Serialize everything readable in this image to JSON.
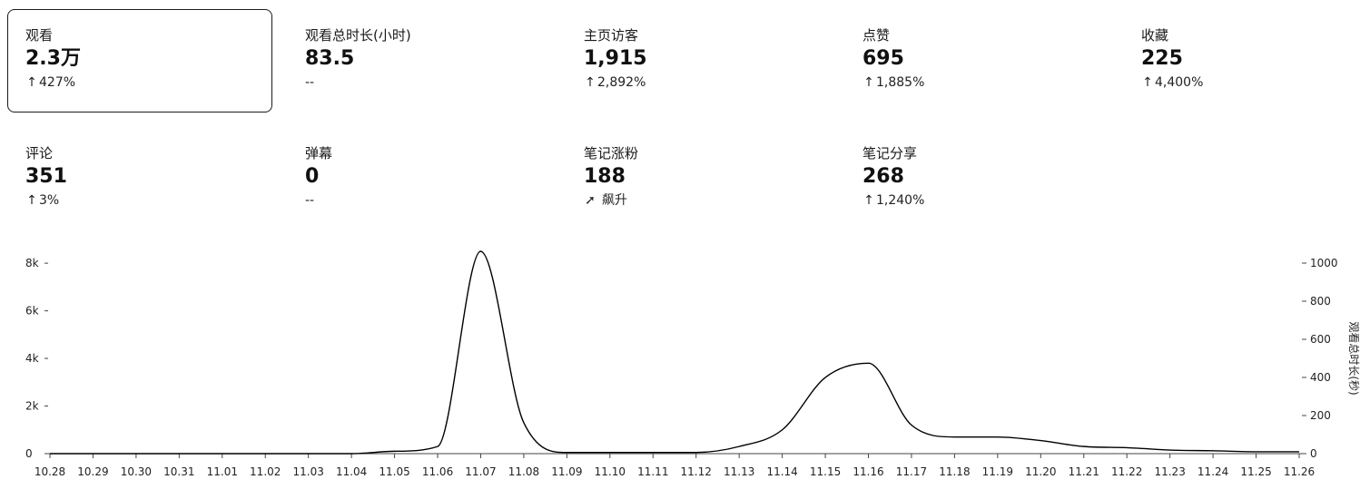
{
  "metrics": [
    {
      "label": "观看",
      "value": "2.3万",
      "arrow": "↑",
      "change": "427%",
      "selected": true
    },
    {
      "label": "观看总时长(小时)",
      "value": "83.5",
      "arrow": "",
      "change": "--",
      "selected": false
    },
    {
      "label": "主页访客",
      "value": "1,915",
      "arrow": "↑",
      "change": "2,892%",
      "selected": false
    },
    {
      "label": "点赞",
      "value": "695",
      "arrow": "↑",
      "change": "1,885%",
      "selected": false
    },
    {
      "label": "收藏",
      "value": "225",
      "arrow": "↑",
      "change": "4,400%",
      "selected": false
    },
    {
      "label": "评论",
      "value": "351",
      "arrow": "↑",
      "change": "3%",
      "selected": false
    },
    {
      "label": "弹幕",
      "value": "0",
      "arrow": "",
      "change": "--",
      "selected": false
    },
    {
      "label": "笔记涨粉",
      "value": "188",
      "arrow": "➚",
      "change": "飙升",
      "selected": false,
      "arrow_style": "bold"
    },
    {
      "label": "笔记分享",
      "value": "268",
      "arrow": "↑",
      "change": "1,240%",
      "selected": false
    }
  ],
  "chart_data": {
    "type": "line",
    "title": "",
    "xlabel": "",
    "ylabel": "",
    "y2label": "观看总时长(秒)",
    "categories": [
      "10.28",
      "10.29",
      "10.30",
      "10.31",
      "11.01",
      "11.02",
      "11.03",
      "11.04",
      "11.05",
      "11.06",
      "11.07",
      "11.08",
      "11.09",
      "11.10",
      "11.11",
      "11.12",
      "11.13",
      "11.14",
      "11.15",
      "11.16",
      "11.17",
      "11.18",
      "11.19",
      "11.20",
      "11.21",
      "11.22",
      "11.23",
      "11.24",
      "11.25",
      "11.26"
    ],
    "series": [
      {
        "values": [
          0,
          0,
          0,
          0,
          0,
          0,
          0,
          0,
          100,
          300,
          8500,
          1300,
          50,
          50,
          50,
          50,
          300,
          1000,
          3200,
          3800,
          1200,
          700,
          700,
          550,
          300,
          250,
          150,
          120,
          80,
          80
        ]
      }
    ],
    "ylim": [
      0,
      8500
    ],
    "yticks": [
      0,
      2000,
      4000,
      6000,
      8000
    ],
    "ytick_labels": [
      "0",
      "2k",
      "4k",
      "6k",
      "8k"
    ],
    "y2lim": [
      0,
      1000
    ],
    "y2ticks": [
      0,
      200,
      400,
      600,
      800,
      1000
    ],
    "y2tick_labels": [
      "0",
      "200",
      "400",
      "600",
      "800",
      "1000"
    ],
    "grid": false,
    "colors": {
      "line": "#000000",
      "axis": "#444444"
    }
  }
}
